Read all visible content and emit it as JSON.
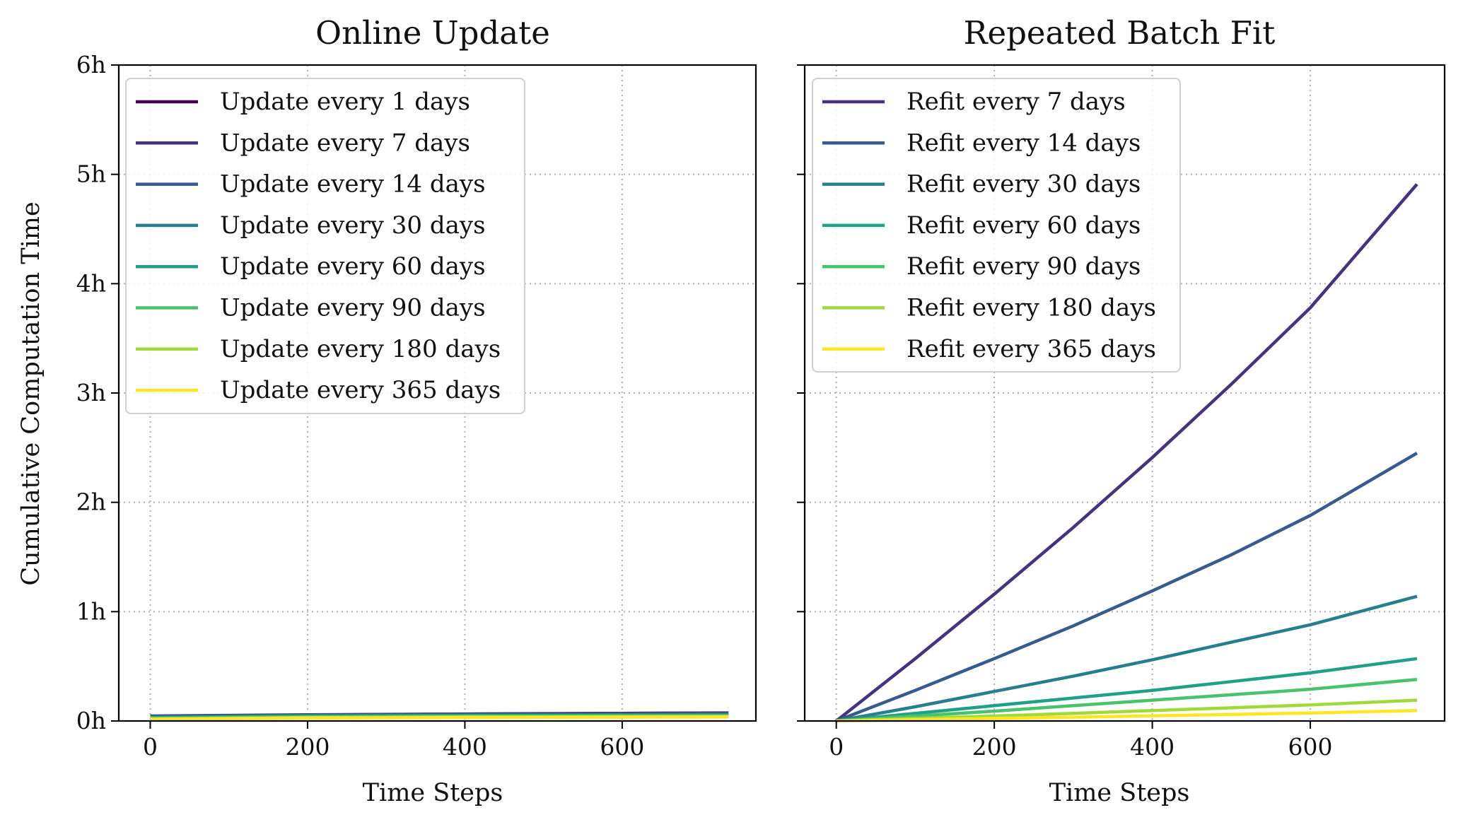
{
  "chart_data": [
    {
      "type": "line",
      "title": "Online Update",
      "xlabel": "Time Steps",
      "ylabel": "Cumulative Computation Time",
      "xlim": [
        -40,
        770
      ],
      "ylim": [
        0,
        6
      ],
      "xticks": [
        0,
        200,
        400,
        600
      ],
      "xtick_labels": [
        "0",
        "200",
        "400",
        "600"
      ],
      "yticks": [
        0,
        1,
        2,
        3,
        4,
        5,
        6
      ],
      "ytick_labels": [
        "0h",
        "1h",
        "2h",
        "3h",
        "4h",
        "5h",
        "6h"
      ],
      "grid": true,
      "legend_position": "top-left",
      "series": [
        {
          "name": "Update every 1 days",
          "color": "#440154",
          "x": [
            0,
            200,
            400,
            600,
            735
          ],
          "y": [
            0.04,
            0.055,
            0.063,
            0.069,
            0.072
          ]
        },
        {
          "name": "Update every 7 days",
          "color": "#46327e",
          "x": [
            0,
            200,
            400,
            600,
            735
          ],
          "y": [
            0.045,
            0.057,
            0.064,
            0.07,
            0.074
          ]
        },
        {
          "name": "Update every 14 days",
          "color": "#365c8d",
          "x": [
            0,
            200,
            400,
            600,
            735
          ],
          "y": [
            0.04,
            0.053,
            0.058,
            0.062,
            0.065
          ]
        },
        {
          "name": "Update every 30 days",
          "color": "#277f8e",
          "x": [
            0,
            200,
            400,
            600,
            735
          ],
          "y": [
            0.035,
            0.048,
            0.053,
            0.056,
            0.058
          ]
        },
        {
          "name": "Update every 60 days",
          "color": "#1fa187",
          "x": [
            0,
            200,
            400,
            600,
            735
          ],
          "y": [
            0.03,
            0.043,
            0.048,
            0.051,
            0.053
          ]
        },
        {
          "name": "Update every 90 days",
          "color": "#4ac16d",
          "x": [
            0,
            200,
            400,
            600,
            735
          ],
          "y": [
            0.025,
            0.038,
            0.043,
            0.046,
            0.048
          ]
        },
        {
          "name": "Update every 180 days",
          "color": "#a0da39",
          "x": [
            0,
            200,
            400,
            600,
            735
          ],
          "y": [
            0.02,
            0.032,
            0.037,
            0.04,
            0.042
          ]
        },
        {
          "name": "Update every 365 days",
          "color": "#fde725",
          "x": [
            0,
            200,
            400,
            600,
            735
          ],
          "y": [
            0.015,
            0.027,
            0.032,
            0.035,
            0.037
          ]
        }
      ]
    },
    {
      "type": "line",
      "title": "Repeated Batch Fit",
      "xlabel": "Time Steps",
      "ylabel": "",
      "xlim": [
        -40,
        770
      ],
      "ylim": [
        0,
        6
      ],
      "xticks": [
        0,
        200,
        400,
        600
      ],
      "xtick_labels": [
        "0",
        "200",
        "400",
        "600"
      ],
      "yticks": [
        0,
        1,
        2,
        3,
        4,
        5,
        6
      ],
      "grid": true,
      "legend_position": "top-left",
      "series": [
        {
          "name": "Refit every 7 days",
          "color": "#46327e",
          "x": [
            0,
            100,
            200,
            300,
            400,
            500,
            600,
            735
          ],
          "y": [
            0.0,
            0.57,
            1.16,
            1.77,
            2.41,
            3.08,
            3.78,
            4.91
          ]
        },
        {
          "name": "Refit every 14 days",
          "color": "#365c8d",
          "x": [
            0,
            100,
            200,
            300,
            400,
            500,
            600,
            735
          ],
          "y": [
            0.0,
            0.28,
            0.57,
            0.87,
            1.19,
            1.52,
            1.88,
            2.45
          ]
        },
        {
          "name": "Refit every 30 days",
          "color": "#277f8e",
          "x": [
            0,
            100,
            200,
            300,
            400,
            500,
            600,
            735
          ],
          "y": [
            0.0,
            0.13,
            0.27,
            0.41,
            0.56,
            0.72,
            0.88,
            1.14
          ]
        },
        {
          "name": "Refit every 60 days",
          "color": "#1fa187",
          "x": [
            0,
            100,
            200,
            300,
            400,
            500,
            600,
            735
          ],
          "y": [
            0.0,
            0.07,
            0.14,
            0.21,
            0.28,
            0.36,
            0.44,
            0.57
          ]
        },
        {
          "name": "Refit every 90 days",
          "color": "#4ac16d",
          "x": [
            0,
            100,
            200,
            300,
            400,
            500,
            600,
            735
          ],
          "y": [
            0.0,
            0.045,
            0.09,
            0.14,
            0.19,
            0.24,
            0.29,
            0.38
          ]
        },
        {
          "name": "Refit every 180 days",
          "color": "#a0da39",
          "x": [
            0,
            100,
            200,
            300,
            400,
            500,
            600,
            735
          ],
          "y": [
            0.0,
            0.023,
            0.045,
            0.07,
            0.095,
            0.12,
            0.147,
            0.19
          ]
        },
        {
          "name": "Refit every 365 days",
          "color": "#fde725",
          "x": [
            0,
            100,
            200,
            300,
            400,
            500,
            600,
            735
          ],
          "y": [
            0.0,
            0.011,
            0.023,
            0.035,
            0.047,
            0.06,
            0.073,
            0.095
          ]
        }
      ]
    }
  ]
}
